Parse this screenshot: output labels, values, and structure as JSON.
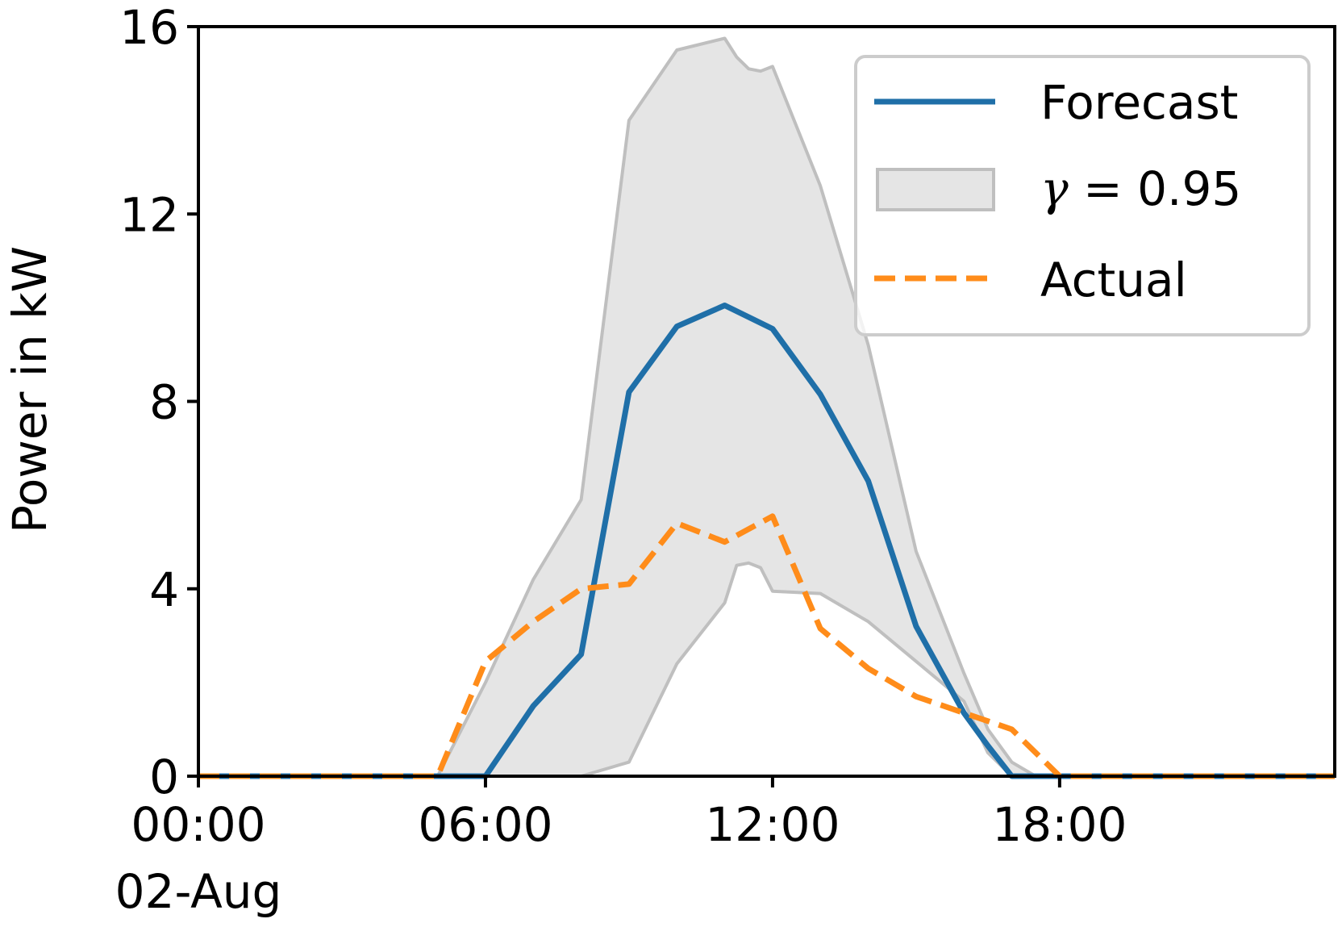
{
  "chart_data": {
    "type": "line",
    "title": "",
    "xlabel": "",
    "ylabel": "Power in kW",
    "xlim": [
      "2025-08-02T00:00",
      "2025-08-02T23:45"
    ],
    "ylim": [
      0,
      16
    ],
    "yticks": [
      0,
      4,
      8,
      12,
      16
    ],
    "xticks": [
      {
        "x": "2025-08-02T00:00",
        "label": "00:00",
        "sublabel": "02-Aug"
      },
      {
        "x": "2025-08-02T06:00",
        "label": "06:00",
        "sublabel": ""
      },
      {
        "x": "2025-08-02T12:00",
        "label": "12:00",
        "sublabel": ""
      },
      {
        "x": "2025-08-02T18:00",
        "label": "18:00",
        "sublabel": ""
      }
    ],
    "grid": false,
    "legend_position": "top-right",
    "legend": [
      {
        "label": "Forecast"
      },
      {
        "label_symbol": "γ",
        "label_rest": " = 0.95"
      },
      {
        "label": "Actual"
      }
    ],
    "colors": {
      "forecast": "#1f6fa8",
      "actual": "#ff8c1a",
      "band_fill": "#e5e5e5",
      "band_edge": "#bfbfbf"
    },
    "interval": {
      "name": "γ = 0.95",
      "x": [
        "2025-08-02T00:00",
        "2025-08-02T05:00",
        "2025-08-02T06:00",
        "2025-08-02T07:00",
        "2025-08-02T08:00",
        "2025-08-02T09:00",
        "2025-08-02T10:00",
        "2025-08-02T11:00",
        "2025-08-02T11:15",
        "2025-08-02T11:30",
        "2025-08-02T11:45",
        "2025-08-02T12:00",
        "2025-08-02T13:00",
        "2025-08-02T14:00",
        "2025-08-02T15:00",
        "2025-08-02T16:00",
        "2025-08-02T16:30",
        "2025-08-02T17:00",
        "2025-08-02T17:30",
        "2025-08-02T18:00",
        "2025-08-02T23:45"
      ],
      "upper": [
        0,
        0,
        2.0,
        4.2,
        5.9,
        14.0,
        15.5,
        15.75,
        15.35,
        15.1,
        15.05,
        15.15,
        12.6,
        9.2,
        4.8,
        2.2,
        1.0,
        0.3,
        0.0,
        0,
        0
      ],
      "lower": [
        0,
        0,
        0,
        0,
        0,
        0.3,
        2.4,
        3.7,
        4.5,
        4.55,
        4.45,
        3.95,
        3.9,
        3.3,
        2.45,
        1.6,
        0.5,
        0,
        0,
        0,
        0
      ]
    },
    "series": [
      {
        "name": "Forecast",
        "x": [
          "2025-08-02T00:00",
          "2025-08-02T06:00",
          "2025-08-02T07:00",
          "2025-08-02T08:00",
          "2025-08-02T09:00",
          "2025-08-02T10:00",
          "2025-08-02T11:00",
          "2025-08-02T12:00",
          "2025-08-02T13:00",
          "2025-08-02T14:00",
          "2025-08-02T15:00",
          "2025-08-02T16:00",
          "2025-08-02T16:30",
          "2025-08-02T17:00",
          "2025-08-02T23:45"
        ],
        "y": [
          0,
          0,
          1.5,
          2.6,
          8.2,
          9.6,
          10.05,
          9.55,
          8.15,
          6.3,
          3.2,
          1.35,
          0.65,
          0,
          0
        ]
      },
      {
        "name": "Actual",
        "x": [
          "2025-08-02T00:00",
          "2025-08-02T05:00",
          "2025-08-02T06:00",
          "2025-08-02T07:00",
          "2025-08-02T08:00",
          "2025-08-02T09:00",
          "2025-08-02T10:00",
          "2025-08-02T11:00",
          "2025-08-02T12:00",
          "2025-08-02T13:00",
          "2025-08-02T14:00",
          "2025-08-02T15:00",
          "2025-08-02T16:00",
          "2025-08-02T17:00",
          "2025-08-02T18:00",
          "2025-08-02T23:45"
        ],
        "y": [
          0,
          0,
          2.45,
          3.3,
          4.0,
          4.1,
          5.4,
          5.0,
          5.55,
          3.15,
          2.3,
          1.7,
          1.35,
          1.0,
          0,
          0
        ]
      }
    ]
  }
}
